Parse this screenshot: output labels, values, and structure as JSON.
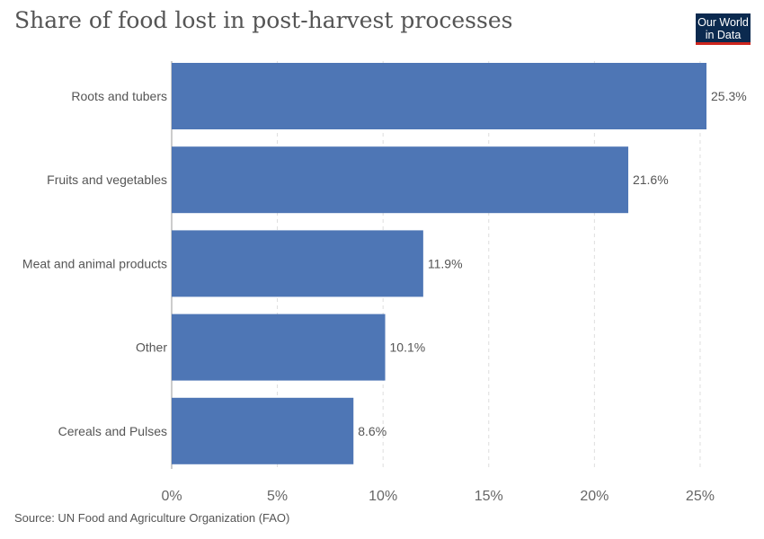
{
  "title": "Share of food lost in post-harvest processes",
  "logo": {
    "line1": "Our World",
    "line2": "in Data",
    "colors": {
      "bg": "#0b2a4f",
      "accent": "#ce261e"
    }
  },
  "source": "Source: UN Food and Agriculture Organization (FAO)",
  "chart_data": {
    "type": "bar",
    "orientation": "horizontal",
    "categories": [
      "Roots and tubers",
      "Fruits and vegetables",
      "Meat and animal products",
      "Other",
      "Cereals and Pulses"
    ],
    "values": [
      25.3,
      21.6,
      11.9,
      10.1,
      8.6
    ],
    "value_labels": [
      "25.3%",
      "21.6%",
      "11.9%",
      "10.1%",
      "8.6%"
    ],
    "xticks": [
      0,
      5,
      10,
      15,
      20,
      25
    ],
    "xtick_labels": [
      "0%",
      "5%",
      "10%",
      "15%",
      "20%",
      "25%"
    ],
    "xlim": [
      0,
      25.3
    ],
    "grid": "vertical dashed",
    "bar_color": "#4e76b5"
  }
}
